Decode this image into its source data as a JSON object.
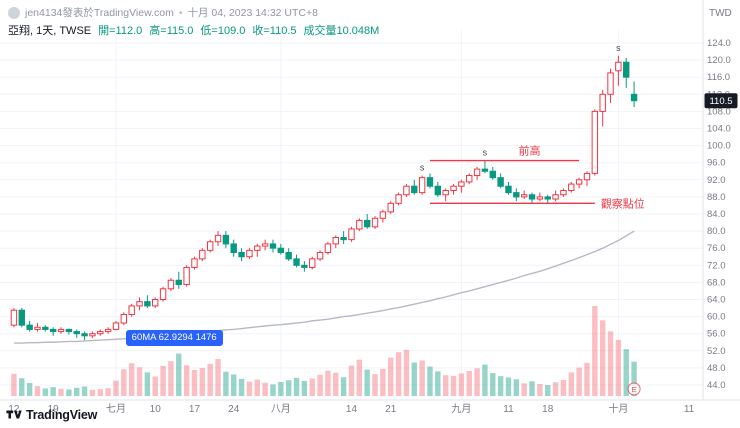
{
  "header": {
    "byline_text": "jen4134發表於TradingView.com",
    "separator": "•",
    "timestamp": "十月 04, 2023 14:32 UTC+8",
    "symbol": "亞翔, 1天, TWSE",
    "open": "開=112.0",
    "high": "高=115.0",
    "low": "低=109.0",
    "close": "收=110.5",
    "volume": "成交量10.048M"
  },
  "price_scale": {
    "currency": "TWD",
    "labels": [
      124,
      120,
      116,
      112,
      108,
      104,
      100,
      96,
      92,
      88,
      84,
      80,
      76,
      72,
      68,
      64,
      60,
      56,
      52,
      48,
      44
    ],
    "last_price": "110.5"
  },
  "time_scale": {
    "ticks": [
      {
        "i": 0,
        "label": "12"
      },
      {
        "i": 5,
        "label": "19"
      },
      {
        "i": 13,
        "label": "七月",
        "major": true
      },
      {
        "i": 18,
        "label": "10"
      },
      {
        "i": 23,
        "label": "17"
      },
      {
        "i": 28,
        "label": "24"
      },
      {
        "i": 34,
        "label": "八月",
        "major": true
      },
      {
        "i": 43,
        "label": "14"
      },
      {
        "i": 48,
        "label": "21"
      },
      {
        "i": 57,
        "label": "九月",
        "major": true
      },
      {
        "i": 63,
        "label": "11"
      },
      {
        "i": 68,
        "label": "18"
      },
      {
        "i": 77,
        "label": "十月",
        "major": true
      },
      {
        "i": 86,
        "label": "11"
      }
    ]
  },
  "footer": {
    "brand": "TradingView"
  },
  "chart_data": {
    "type": "candlestick",
    "title": "亞翔, 1天, TWSE",
    "price_range": [
      44,
      124
    ],
    "volume_unit": "M",
    "candles": [
      [
        58,
        62,
        57.5,
        61.5,
        6.5
      ],
      [
        61.5,
        62,
        57.5,
        58,
        5.2
      ],
      [
        58,
        59,
        56.5,
        57,
        3.8
      ],
      [
        57,
        58.5,
        56.5,
        57.5,
        2.9
      ],
      [
        57.5,
        58,
        56.5,
        57,
        2.2
      ],
      [
        57,
        57.5,
        55.5,
        56.5,
        2.6
      ],
      [
        56.5,
        57.5,
        56,
        57,
        2.1
      ],
      [
        57,
        57.2,
        55.8,
        56.5,
        1.9
      ],
      [
        56.5,
        57,
        55,
        56,
        2.4
      ],
      [
        56,
        56.5,
        54.5,
        55.5,
        2.8
      ],
      [
        55.5,
        56.5,
        55,
        56,
        1.8
      ],
      [
        56,
        57,
        55.5,
        56.5,
        2.0
      ],
      [
        56.5,
        57.5,
        56,
        57,
        2.3
      ],
      [
        57,
        59,
        56.8,
        58.5,
        4.5
      ],
      [
        58.5,
        61,
        58,
        60.5,
        7.8
      ],
      [
        60.5,
        63,
        60,
        62.5,
        9.6
      ],
      [
        62.5,
        64.5,
        61.5,
        63.5,
        8.4
      ],
      [
        63.5,
        65,
        62,
        62.5,
        6.9
      ],
      [
        62.5,
        64.5,
        62,
        64,
        5.7
      ],
      [
        64,
        67,
        63.5,
        66.5,
        8.8
      ],
      [
        66.5,
        69,
        66,
        68.5,
        10.2
      ],
      [
        68.5,
        70.5,
        66.5,
        67.5,
        12.4
      ],
      [
        67.5,
        72,
        67,
        71.5,
        9.0
      ],
      [
        71.5,
        74,
        71,
        73.5,
        7.6
      ],
      [
        73.5,
        76,
        73,
        75.5,
        8.2
      ],
      [
        75.5,
        78,
        75,
        77.5,
        9.4
      ],
      [
        77.5,
        80,
        76.5,
        79,
        10.8
      ],
      [
        79,
        80,
        76,
        77,
        7.1
      ],
      [
        77,
        78,
        74,
        75,
        6.3
      ],
      [
        75,
        76,
        73,
        74,
        5.0
      ],
      [
        74,
        76,
        73.5,
        75.5,
        4.2
      ],
      [
        75.5,
        77,
        74,
        76.5,
        4.8
      ],
      [
        76.5,
        78,
        75.5,
        77,
        3.9
      ],
      [
        77,
        78,
        75,
        76,
        3.4
      ],
      [
        76,
        77,
        74.5,
        75,
        4.1
      ],
      [
        75,
        76,
        73,
        73.5,
        4.6
      ],
      [
        73.5,
        74.5,
        71.5,
        72,
        5.3
      ],
      [
        72,
        73,
        70.5,
        71.5,
        4.4
      ],
      [
        71.5,
        74,
        71,
        73.5,
        5.1
      ],
      [
        73.5,
        75.5,
        73,
        75,
        6.2
      ],
      [
        75,
        77.5,
        74.5,
        77,
        7.4
      ],
      [
        77,
        79,
        76,
        78.5,
        6.8
      ],
      [
        78.5,
        80,
        77,
        78,
        5.5
      ],
      [
        78,
        81,
        77.5,
        80.5,
        8.9
      ],
      [
        80.5,
        83,
        80,
        82.5,
        10.6
      ],
      [
        82.5,
        84,
        80.5,
        81,
        7.7
      ],
      [
        81,
        83.5,
        80.5,
        83,
        6.4
      ],
      [
        83,
        85,
        82,
        84.5,
        7.9
      ],
      [
        84.5,
        87,
        84,
        86.5,
        11.2
      ],
      [
        86.5,
        89,
        86,
        88.5,
        12.8
      ],
      [
        88.5,
        91,
        88,
        90.5,
        13.5
      ],
      [
        90.5,
        92,
        88.5,
        89,
        9.8
      ],
      [
        89,
        93,
        88.5,
        92.5,
        10.4
      ],
      [
        92.5,
        93.5,
        90,
        90.5,
        8.6
      ],
      [
        90.5,
        91.5,
        88,
        88.5,
        7.2
      ],
      [
        88.5,
        90,
        87,
        89.5,
        6.1
      ],
      [
        89.5,
        91,
        88.5,
        90.5,
        5.9
      ],
      [
        90.5,
        92,
        89,
        91.5,
        6.6
      ],
      [
        91.5,
        93.5,
        91,
        93,
        7.3
      ],
      [
        93,
        95,
        92,
        94.5,
        8.1
      ],
      [
        94.5,
        96.5,
        93.5,
        94,
        9.2
      ],
      [
        94,
        95,
        92,
        92.5,
        6.7
      ],
      [
        92.5,
        93.5,
        90,
        90.5,
        5.8
      ],
      [
        90.5,
        91.5,
        88.5,
        89,
        5.4
      ],
      [
        89,
        90,
        87,
        88,
        4.9
      ],
      [
        88,
        89.5,
        87.5,
        88.5,
        3.7
      ],
      [
        88.5,
        89,
        86.5,
        87.5,
        4.3
      ],
      [
        87.5,
        89,
        87,
        88,
        3.5
      ],
      [
        88,
        88.5,
        86.5,
        87.5,
        3.2
      ],
      [
        87.5,
        89.5,
        87,
        88.5,
        4.0
      ],
      [
        88.5,
        90,
        88,
        89.5,
        4.7
      ],
      [
        89.5,
        91.5,
        89,
        91,
        6.9
      ],
      [
        91,
        92.5,
        90,
        92,
        8.3
      ],
      [
        92,
        94,
        90.5,
        93.5,
        9.7
      ],
      [
        93.5,
        108.5,
        93,
        108,
        26.3
      ],
      [
        108,
        113,
        104.5,
        112,
        22.1
      ],
      [
        112,
        118,
        110,
        117,
        18.9
      ],
      [
        117.5,
        121,
        114,
        119.5,
        16.4
      ],
      [
        119.5,
        120.5,
        113.5,
        116,
        13.7
      ],
      [
        112,
        115,
        109,
        110.5,
        10.048
      ]
    ],
    "ma60": [
      53.8,
      53.8,
      53.9,
      53.9,
      54.0,
      54.0,
      54.1,
      54.2,
      54.2,
      54.3,
      54.4,
      54.5,
      54.6,
      54.7,
      54.8,
      54.9,
      55.0,
      55.2,
      55.3,
      55.4,
      55.6,
      55.8,
      55.9,
      56.1,
      56.3,
      56.5,
      56.7,
      56.9,
      57.0,
      57.2,
      57.4,
      57.6,
      57.8,
      58.0,
      58.1,
      58.3,
      58.5,
      58.7,
      59.0,
      59.2,
      59.4,
      59.7,
      60.0,
      60.2,
      60.5,
      60.8,
      61.1,
      61.4,
      61.8,
      62.1,
      62.5,
      62.9,
      63.3,
      63.7,
      64.2,
      64.6,
      65.1,
      65.6,
      66.0,
      66.5,
      67.0,
      67.5,
      68.0,
      68.5,
      69.0,
      69.6,
      70.1,
      70.6,
      71.2,
      71.8,
      72.5,
      73.1,
      73.8,
      74.5,
      75.2,
      76.0,
      76.9,
      77.8,
      78.9,
      80.0
    ],
    "ma_label": {
      "text": "60MA 62.9294 1476",
      "anchor_index": 15,
      "anchor_price": 55.3
    },
    "markers": [
      {
        "index": 52,
        "label": "s"
      },
      {
        "index": 60,
        "label": "s"
      },
      {
        "index": 77,
        "label": "s"
      }
    ],
    "annotations": [
      {
        "label": "前高",
        "price": 96.5,
        "from_index": 53,
        "to_index": 72,
        "label_position": "above"
      },
      {
        "label": "觀察點位",
        "price": 86.5,
        "from_index": 53,
        "to_index": 74,
        "label_position": "right"
      }
    ],
    "event_marker": {
      "index": 79,
      "label": "E"
    },
    "colors": {
      "up": "#f23645",
      "up_fill": "#ffffff",
      "down": "#089981",
      "volume_up": "rgba(242,54,69,0.32)",
      "volume_down": "rgba(8,153,129,0.42)",
      "ma": "#b7bac4",
      "annotation": "#f23645",
      "grid": "#f0f3fa",
      "axis_border": "#e0e3eb",
      "axis_text": "#787b86",
      "marker_text": "#42464f",
      "last_badge_bg": "#161a25",
      "last_badge_text": "#ffffff"
    }
  }
}
